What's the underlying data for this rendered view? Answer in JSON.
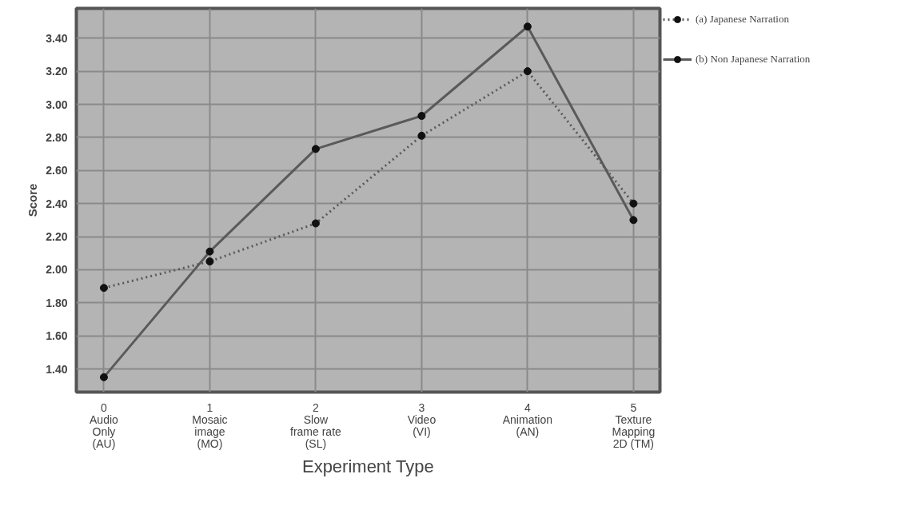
{
  "chart_data": {
    "type": "line",
    "xlabel": "Experiment Type",
    "ylabel": "Score",
    "categories": [
      "0\nAudio\nOnly\n(AU)",
      "1\nMosaic\nimage\n(MO)",
      "2\nSlow\nframe rate\n(SL)",
      "3\nVideo\n(VI)",
      "4\nAnimation\n(AN)",
      "5\nTexture\nMapping\n2D (TM)"
    ],
    "ylim": [
      1.26,
      3.58
    ],
    "yticks": [
      {
        "value": 1.4,
        "label": "1.40"
      },
      {
        "value": 1.6,
        "label": "1.60"
      },
      {
        "value": 1.8,
        "label": "1.80"
      },
      {
        "value": 2.0,
        "label": "2.00"
      },
      {
        "value": 2.2,
        "label": "2.20"
      },
      {
        "value": 2.4,
        "label": "2.40"
      },
      {
        "value": 2.6,
        "label": "2.60"
      },
      {
        "value": 2.8,
        "label": "2.80"
      },
      {
        "value": 3.0,
        "label": "3.00"
      },
      {
        "value": 3.2,
        "label": "3.20"
      },
      {
        "value": 3.4,
        "label": "3.40"
      }
    ],
    "grid": true,
    "legend": "top right",
    "marker": "circle",
    "series": [
      {
        "name": "(a) Japanese Narration",
        "color": "#5a5a5a",
        "line_style": "dotted",
        "values": [
          1.89,
          2.05,
          2.28,
          2.81,
          3.2,
          2.4
        ]
      },
      {
        "name": "(b) Non Japanese Narration",
        "color": "#5a5a5a",
        "line_style": "solid",
        "values": [
          1.35,
          2.11,
          2.73,
          2.93,
          3.47,
          2.3
        ]
      }
    ]
  }
}
